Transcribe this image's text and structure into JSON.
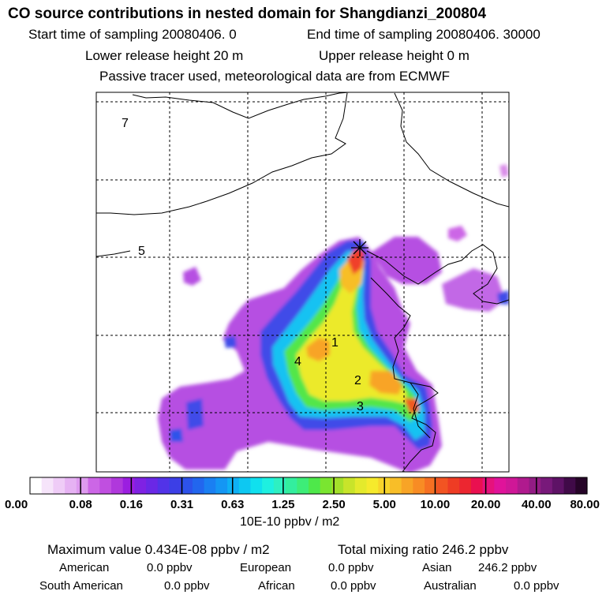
{
  "header": {
    "title": "CO  source contributions in nested domain for Shangdianzi_200804",
    "start_label": "Start time of sampling 20080406.     0",
    "end_label": "End time of sampling 20080406. 30000",
    "lower_label": "Lower release height   20 m",
    "upper_label": "Upper release height    0 m",
    "tracer_line": "Passive tracer used, meteorological data are from ECMWF"
  },
  "chart_data": {
    "type": "heatmap",
    "title": "CO  source contributions in nested domain for Shangdianzi_200804",
    "region_labels": [
      "7",
      "5",
      "1",
      "4",
      "2",
      "3"
    ],
    "colorbar": {
      "ticks": [
        "0.00",
        "0.08",
        "0.16",
        "0.31",
        "0.63",
        "1.25",
        "2.50",
        "5.00",
        "10.00",
        "20.00",
        "40.00",
        "80.00"
      ],
      "unit_label": "10E-10 ppbv / m2",
      "colors": [
        "#ffffff",
        "#f6e4fa",
        "#efccf7",
        "#e6b2f3",
        "#de9aef",
        "#cc66e6",
        "#c04fe0",
        "#b038dc",
        "#9b1ee0",
        "#7f22e3",
        "#6a28e6",
        "#5233e8",
        "#3c3fe6",
        "#2d52ea",
        "#2266ee",
        "#1a7ff2",
        "#1496f4",
        "#0fb0f5",
        "#0dc8f2",
        "#10e0ee",
        "#1ef0e0",
        "#2ef0c2",
        "#33ee9e",
        "#3ded78",
        "#4ee84a",
        "#7ae530",
        "#a4e02a",
        "#c8e42a",
        "#e4ea2c",
        "#f6ea2c",
        "#f8d42a",
        "#f8be28",
        "#f8a426",
        "#f88c24",
        "#f67022",
        "#f25422",
        "#ee3c24",
        "#ec2630",
        "#ea1050",
        "#e6127c",
        "#e0139a",
        "#cf1797",
        "#b01a8e",
        "#931c84",
        "#78197a",
        "#5e1266",
        "#400a48",
        "#260428"
      ]
    }
  },
  "footer": {
    "max_value_label": "Maximum value  0.434E-08 ppbv / m2",
    "total_mixing_label": "Total mixing ratio       246.2 ppbv",
    "sources": [
      {
        "name": "American",
        "value": "0.0 ppbv"
      },
      {
        "name": "European",
        "value": "0.0 ppbv"
      },
      {
        "name": "Asian",
        "value": "246.2 ppbv"
      },
      {
        "name": "South American",
        "value": "0.0 ppbv"
      },
      {
        "name": "African",
        "value": "0.0 ppbv"
      },
      {
        "name": "Australian",
        "value": "0.0 ppbv"
      }
    ]
  }
}
